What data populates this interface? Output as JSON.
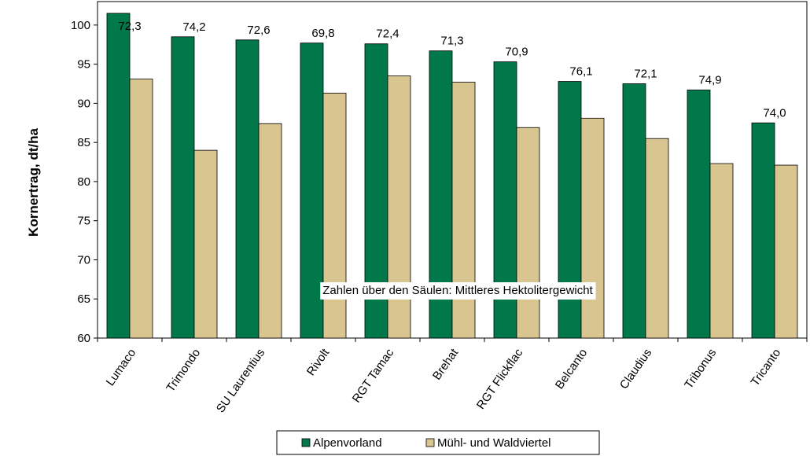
{
  "chart_data": {
    "type": "bar",
    "ylabel": "Kornertrag, dt/ha",
    "ylim": [
      60,
      103
    ],
    "yticks": [
      60,
      65,
      70,
      75,
      80,
      85,
      90,
      95,
      100
    ],
    "grid": false,
    "legend_position": "bottom",
    "categories": [
      "Lumaco",
      "Trimondo",
      "SU Laurentius",
      "Rivolt",
      "RGT Tamac",
      "Brehat",
      "RGT Flickflac",
      "Belcanto",
      "Claudius",
      "Tribonus",
      "Tricanto"
    ],
    "series": [
      {
        "name": "Alpenvorland",
        "color": "#00784A",
        "values": [
          101.5,
          98.5,
          98.1,
          97.7,
          97.6,
          96.7,
          95.3,
          92.8,
          92.5,
          91.7,
          87.5
        ]
      },
      {
        "name": "Mühl- und Waldviertel",
        "color": "#D9C590",
        "values": [
          93.1,
          84.0,
          87.4,
          91.3,
          93.5,
          92.7,
          86.9,
          88.1,
          85.5,
          82.3,
          82.1
        ]
      }
    ],
    "data_labels": [
      "72,3",
      "74,2",
      "72,6",
      "69,8",
      "72,4",
      "71,3",
      "70,9",
      "76,1",
      "72,1",
      "74,9",
      "74,0"
    ],
    "annotation": "Zahlen über den Säulen: Mittleres Hektolitergewicht"
  }
}
